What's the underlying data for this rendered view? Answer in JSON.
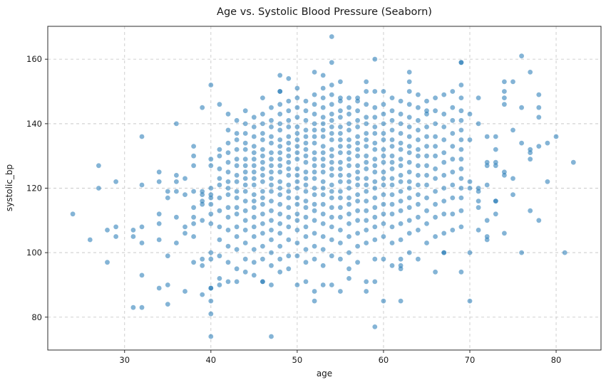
{
  "title": "Age vs. Systolic Blood Pressure (Seaborn)",
  "chart_data": {
    "type": "scatter",
    "title": "Age vs. Systolic Blood Pressure (Seaborn)",
    "xlabel": "age",
    "ylabel": "systolic_bp",
    "x_ticks": [
      30,
      40,
      50,
      60,
      70,
      80
    ],
    "y_ticks": [
      80,
      100,
      120,
      140,
      160
    ],
    "x_range": [
      21.1,
      85.2
    ],
    "y_range": [
      69.8,
      170.2
    ],
    "grid": true,
    "grid_style": "dashed",
    "legend": false,
    "marker_color": "#1f77b4",
    "marker_opacity": 0.55,
    "marker_radius": 3.4,
    "grid_color": "#c9c9c9",
    "spine_color": "#2b2b2b",
    "points_by_age": {
      "24": [
        112
      ],
      "26": [
        104
      ],
      "27": [
        127,
        120
      ],
      "28": [
        107,
        97
      ],
      "29": [
        122,
        108,
        105
      ],
      "31": [
        107,
        105,
        83
      ],
      "32": [
        136,
        121,
        108,
        103,
        93,
        83
      ],
      "34": [
        125,
        122,
        112,
        109,
        104,
        89
      ],
      "35": [
        119,
        117,
        99,
        90,
        84
      ],
      "36": [
        140,
        124,
        122,
        119,
        111,
        103
      ],
      "37": [
        123,
        118,
        108,
        106,
        88
      ],
      "38": [
        133,
        130,
        127,
        119,
        114,
        111,
        109,
        105,
        97
      ],
      "39": [
        145,
        119,
        118,
        116,
        115,
        110,
        98,
        96,
        87
      ],
      "40": [
        152,
        129,
        127,
        120,
        118,
        117,
        115,
        112,
        109,
        100,
        98,
        89,
        89,
        85,
        81,
        74
      ],
      "41": [
        146,
        132,
        130,
        126,
        123,
        121,
        117,
        113,
        108,
        104,
        99,
        92,
        90
      ],
      "42": [
        143,
        138,
        134,
        131,
        128,
        125,
        122,
        120,
        118,
        114,
        111,
        107,
        102,
        97,
        91
      ],
      "43": [
        141,
        137,
        135,
        132,
        129,
        127,
        124,
        122,
        119,
        117,
        114,
        112,
        108,
        105,
        101,
        95,
        91
      ],
      "44": [
        144,
        140,
        137,
        134,
        132,
        129,
        127,
        125,
        123,
        121,
        119,
        116,
        113,
        110,
        107,
        103,
        98,
        94
      ],
      "45": [
        142,
        139,
        136,
        133,
        131,
        129,
        127,
        125,
        123,
        121,
        118,
        116,
        114,
        111,
        108,
        105,
        101,
        97,
        93
      ],
      "46": [
        148,
        143,
        140,
        137,
        135,
        132,
        130,
        128,
        126,
        124,
        122,
        119,
        117,
        115,
        112,
        109,
        106,
        102,
        98,
        91,
        91
      ],
      "47": [
        145,
        141,
        139,
        136,
        134,
        131,
        129,
        127,
        125,
        123,
        121,
        119,
        116,
        113,
        110,
        107,
        104,
        100,
        96,
        90,
        74
      ],
      "48": [
        155,
        150,
        150,
        146,
        143,
        140,
        138,
        135,
        133,
        131,
        129,
        127,
        125,
        122,
        120,
        118,
        115,
        112,
        109,
        106,
        102,
        98,
        94
      ],
      "49": [
        154,
        147,
        144,
        141,
        139,
        136,
        134,
        132,
        130,
        128,
        126,
        124,
        121,
        119,
        117,
        114,
        111,
        108,
        104,
        99,
        95
      ],
      "50": [
        151,
        148,
        145,
        142,
        139,
        137,
        135,
        133,
        131,
        129,
        126,
        124,
        122,
        120,
        117,
        115,
        112,
        110,
        107,
        103,
        99,
        90
      ],
      "51": [
        147,
        144,
        141,
        138,
        136,
        134,
        132,
        130,
        128,
        125,
        123,
        121,
        119,
        116,
        114,
        111,
        108,
        105,
        101,
        97,
        91
      ],
      "52": [
        156,
        149,
        146,
        143,
        140,
        138,
        136,
        134,
        131,
        129,
        127,
        125,
        123,
        120,
        118,
        115,
        113,
        110,
        106,
        102,
        98,
        88,
        85
      ],
      "53": [
        155,
        151,
        148,
        145,
        142,
        140,
        138,
        136,
        133,
        131,
        129,
        127,
        125,
        122,
        120,
        118,
        115,
        112,
        109,
        105,
        101,
        96,
        90
      ],
      "54": [
        167,
        159,
        152,
        149,
        146,
        143,
        141,
        139,
        137,
        135,
        132,
        130,
        128,
        126,
        124,
        121,
        119,
        117,
        114,
        111,
        108,
        104,
        99,
        90
      ],
      "55": [
        153,
        148,
        147,
        144,
        142,
        139,
        137,
        135,
        133,
        131,
        128,
        126,
        124,
        122,
        119,
        117,
        114,
        111,
        107,
        103,
        98,
        88
      ],
      "56": [
        148,
        145,
        143,
        140,
        138,
        135,
        133,
        131,
        129,
        127,
        124,
        122,
        120,
        117,
        115,
        112,
        109,
        105,
        100,
        95,
        92
      ],
      "57": [
        148,
        147,
        144,
        141,
        139,
        136,
        134,
        132,
        130,
        127,
        125,
        123,
        121,
        118,
        116,
        113,
        110,
        106,
        102,
        97
      ],
      "58": [
        153,
        150,
        146,
        142,
        140,
        137,
        135,
        133,
        130,
        128,
        126,
        123,
        121,
        119,
        116,
        113,
        110,
        107,
        103,
        91,
        88
      ],
      "59": [
        160,
        150,
        145,
        142,
        139,
        137,
        134,
        132,
        129,
        127,
        125,
        122,
        120,
        117,
        114,
        111,
        108,
        104,
        98,
        91,
        77
      ],
      "60": [
        150,
        146,
        143,
        140,
        137,
        135,
        132,
        130,
        128,
        125,
        123,
        121,
        118,
        115,
        112,
        109,
        105,
        98,
        85
      ],
      "61": [
        148,
        144,
        141,
        138,
        135,
        133,
        130,
        128,
        126,
        123,
        121,
        118,
        115,
        112,
        108,
        103,
        96
      ],
      "62": [
        147,
        143,
        140,
        137,
        134,
        132,
        129,
        127,
        124,
        122,
        119,
        116,
        113,
        109,
        104,
        98,
        96,
        95,
        85
      ],
      "63": [
        156,
        153,
        150,
        146,
        142,
        139,
        136,
        133,
        131,
        128,
        125,
        122,
        120,
        117,
        114,
        110,
        106,
        100
      ],
      "64": [
        149,
        145,
        141,
        138,
        135,
        132,
        130,
        127,
        124,
        121,
        118,
        115,
        111,
        107,
        98
      ],
      "65": [
        147,
        144,
        143,
        139,
        136,
        133,
        130,
        127,
        124,
        121,
        117,
        113,
        109,
        103
      ],
      "66": [
        148,
        144,
        140,
        136,
        133,
        130,
        126,
        123,
        119,
        115,
        111,
        105,
        94
      ],
      "67": [
        149,
        143,
        139,
        135,
        131,
        128,
        124,
        120,
        116,
        112,
        106,
        100,
        100
      ],
      "68": [
        150,
        145,
        141,
        137,
        133,
        129,
        125,
        121,
        117,
        112,
        107
      ],
      "69": [
        159,
        159,
        152,
        148,
        144,
        141,
        138,
        135,
        132,
        129,
        126,
        123,
        120,
        117,
        113,
        108,
        94
      ],
      "70": [
        143,
        135,
        122,
        120,
        100,
        85
      ],
      "71": [
        148,
        140,
        120,
        119,
        116,
        114,
        107
      ],
      "72": [
        136,
        128,
        127,
        121,
        110,
        105,
        104
      ],
      "73": [
        136,
        132,
        128,
        127,
        116,
        116,
        112
      ],
      "74": [
        153,
        150,
        148,
        146,
        125,
        124,
        106
      ],
      "75": [
        153,
        138,
        123,
        118
      ],
      "76": [
        161,
        145,
        134,
        100
      ],
      "77": [
        156,
        132,
        131,
        129,
        113
      ],
      "78": [
        149,
        145,
        142,
        133,
        110
      ],
      "79": [
        134,
        122
      ],
      "80": [
        136
      ],
      "81": [
        100
      ],
      "82": [
        128
      ]
    }
  }
}
